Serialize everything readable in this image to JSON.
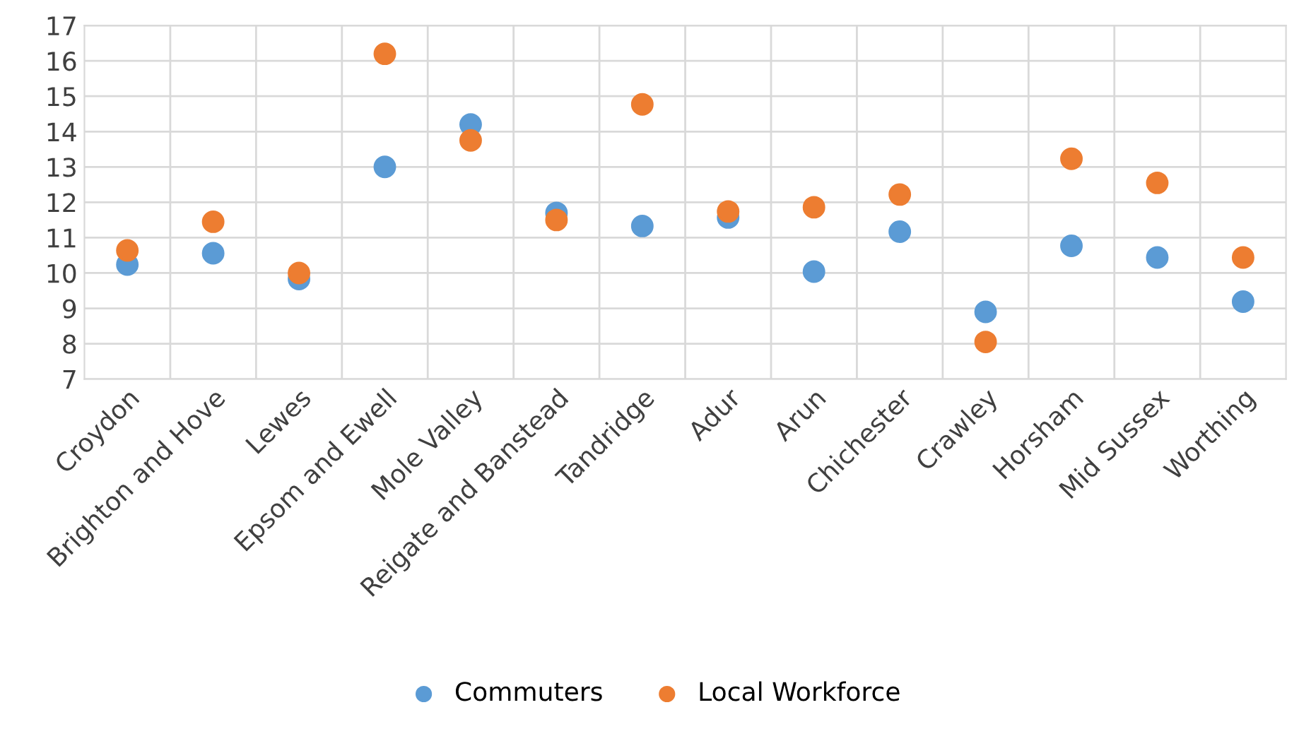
{
  "chart_data": {
    "type": "scatter",
    "categories": [
      "Croydon",
      "Brighton and Hove",
      "Lewes",
      "Epsom and Ewell",
      "Mole Valley",
      "Reigate and Banstead",
      "Tandridge",
      "Adur",
      "Arun",
      "Chichester",
      "Crawley",
      "Horsham",
      "Mid Sussex",
      "Worthing"
    ],
    "series": [
      {
        "name": "Commuters",
        "color": "#5b9bd5",
        "values": [
          10.24,
          10.56,
          9.83,
          13.0,
          14.2,
          11.7,
          11.33,
          11.57,
          10.04,
          11.17,
          8.9,
          10.77,
          10.44,
          9.19
        ]
      },
      {
        "name": "Local Workforce",
        "color": "#ed7d31",
        "values": [
          10.64,
          11.45,
          10.0,
          16.2,
          13.75,
          11.5,
          14.77,
          11.74,
          11.86,
          12.22,
          8.05,
          13.23,
          12.55,
          10.44
        ]
      }
    ],
    "ylim": [
      7,
      17
    ],
    "yticks": [
      7,
      8,
      9,
      10,
      11,
      12,
      13,
      14,
      15,
      16,
      17
    ],
    "grid": true,
    "legend": "bottom",
    "marker": "circle"
  }
}
